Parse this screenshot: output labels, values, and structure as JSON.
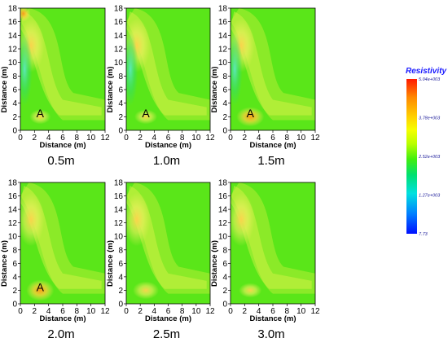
{
  "chart_data": {
    "type": "heatmap",
    "colorbar": {
      "title": "Resistivity",
      "ticks": [
        "5.04e+003",
        "3.78e+003",
        "2.52e+003",
        "1.27e+003",
        "7.73"
      ],
      "tick_values": [
        5040,
        3780,
        2520,
        1270,
        7.73
      ],
      "colors": [
        "#ff2a00",
        "#ff8c00",
        "#ffd400",
        "#f4ff00",
        "#b8ff00",
        "#6bff00",
        "#2ee60a",
        "#00e676",
        "#00e5e5",
        "#0088ff",
        "#0022ff"
      ]
    },
    "panels": [
      {
        "caption": "0.5m",
        "marker": "A",
        "xlabel": "Distance (m)",
        "ylabel": "Distance (m)",
        "xticks": [
          0,
          2,
          4,
          6,
          8,
          10,
          12
        ],
        "yticks": [
          0,
          2,
          4,
          6,
          8,
          10,
          12,
          14,
          16,
          18
        ],
        "xlim": [
          0,
          12
        ],
        "ylim": [
          0,
          18
        ]
      },
      {
        "caption": "1.0m",
        "marker": "A",
        "xlabel": "Distance (m)",
        "ylabel": "Distance (m)",
        "xticks": [
          0,
          2,
          4,
          6,
          8,
          10,
          12
        ],
        "yticks": [
          0,
          2,
          4,
          6,
          8,
          10,
          12,
          14,
          16,
          18
        ],
        "xlim": [
          0,
          12
        ],
        "ylim": [
          0,
          18
        ]
      },
      {
        "caption": "1.5m",
        "marker": "A",
        "xlabel": "Distance (m)",
        "ylabel": "Distance (m)",
        "xticks": [
          0,
          2,
          4,
          6,
          8,
          10,
          12
        ],
        "yticks": [
          0,
          2,
          4,
          6,
          8,
          10,
          12,
          14,
          16,
          18
        ],
        "xlim": [
          0,
          12
        ],
        "ylim": [
          0,
          18
        ]
      },
      {
        "caption": "2.0m",
        "marker": "A",
        "xlabel": "Distance (m)",
        "ylabel": "Distance (m)",
        "xticks": [
          0,
          2,
          4,
          6,
          8,
          10,
          12
        ],
        "yticks": [
          0,
          2,
          4,
          6,
          8,
          10,
          12,
          14,
          16,
          18
        ],
        "xlim": [
          0,
          12
        ],
        "ylim": [
          0,
          18
        ]
      },
      {
        "caption": "2.5m",
        "marker": "",
        "xlabel": "Distance (m)",
        "ylabel": "Distance (m)",
        "xticks": [
          0,
          2,
          4,
          6,
          8,
          10,
          12
        ],
        "yticks": [
          0,
          2,
          4,
          6,
          8,
          10,
          12,
          14,
          16,
          18
        ],
        "xlim": [
          0,
          12
        ],
        "ylim": [
          0,
          18
        ]
      },
      {
        "caption": "3.0m",
        "marker": "",
        "xlabel": "Distance (m)",
        "ylabel": "Distance (m)",
        "xticks": [
          0,
          2,
          4,
          6,
          8,
          10,
          12
        ],
        "yticks": [
          0,
          2,
          4,
          6,
          8,
          10,
          12,
          14,
          16,
          18
        ],
        "xlim": [
          0,
          12
        ],
        "ylim": [
          0,
          18
        ]
      }
    ]
  }
}
